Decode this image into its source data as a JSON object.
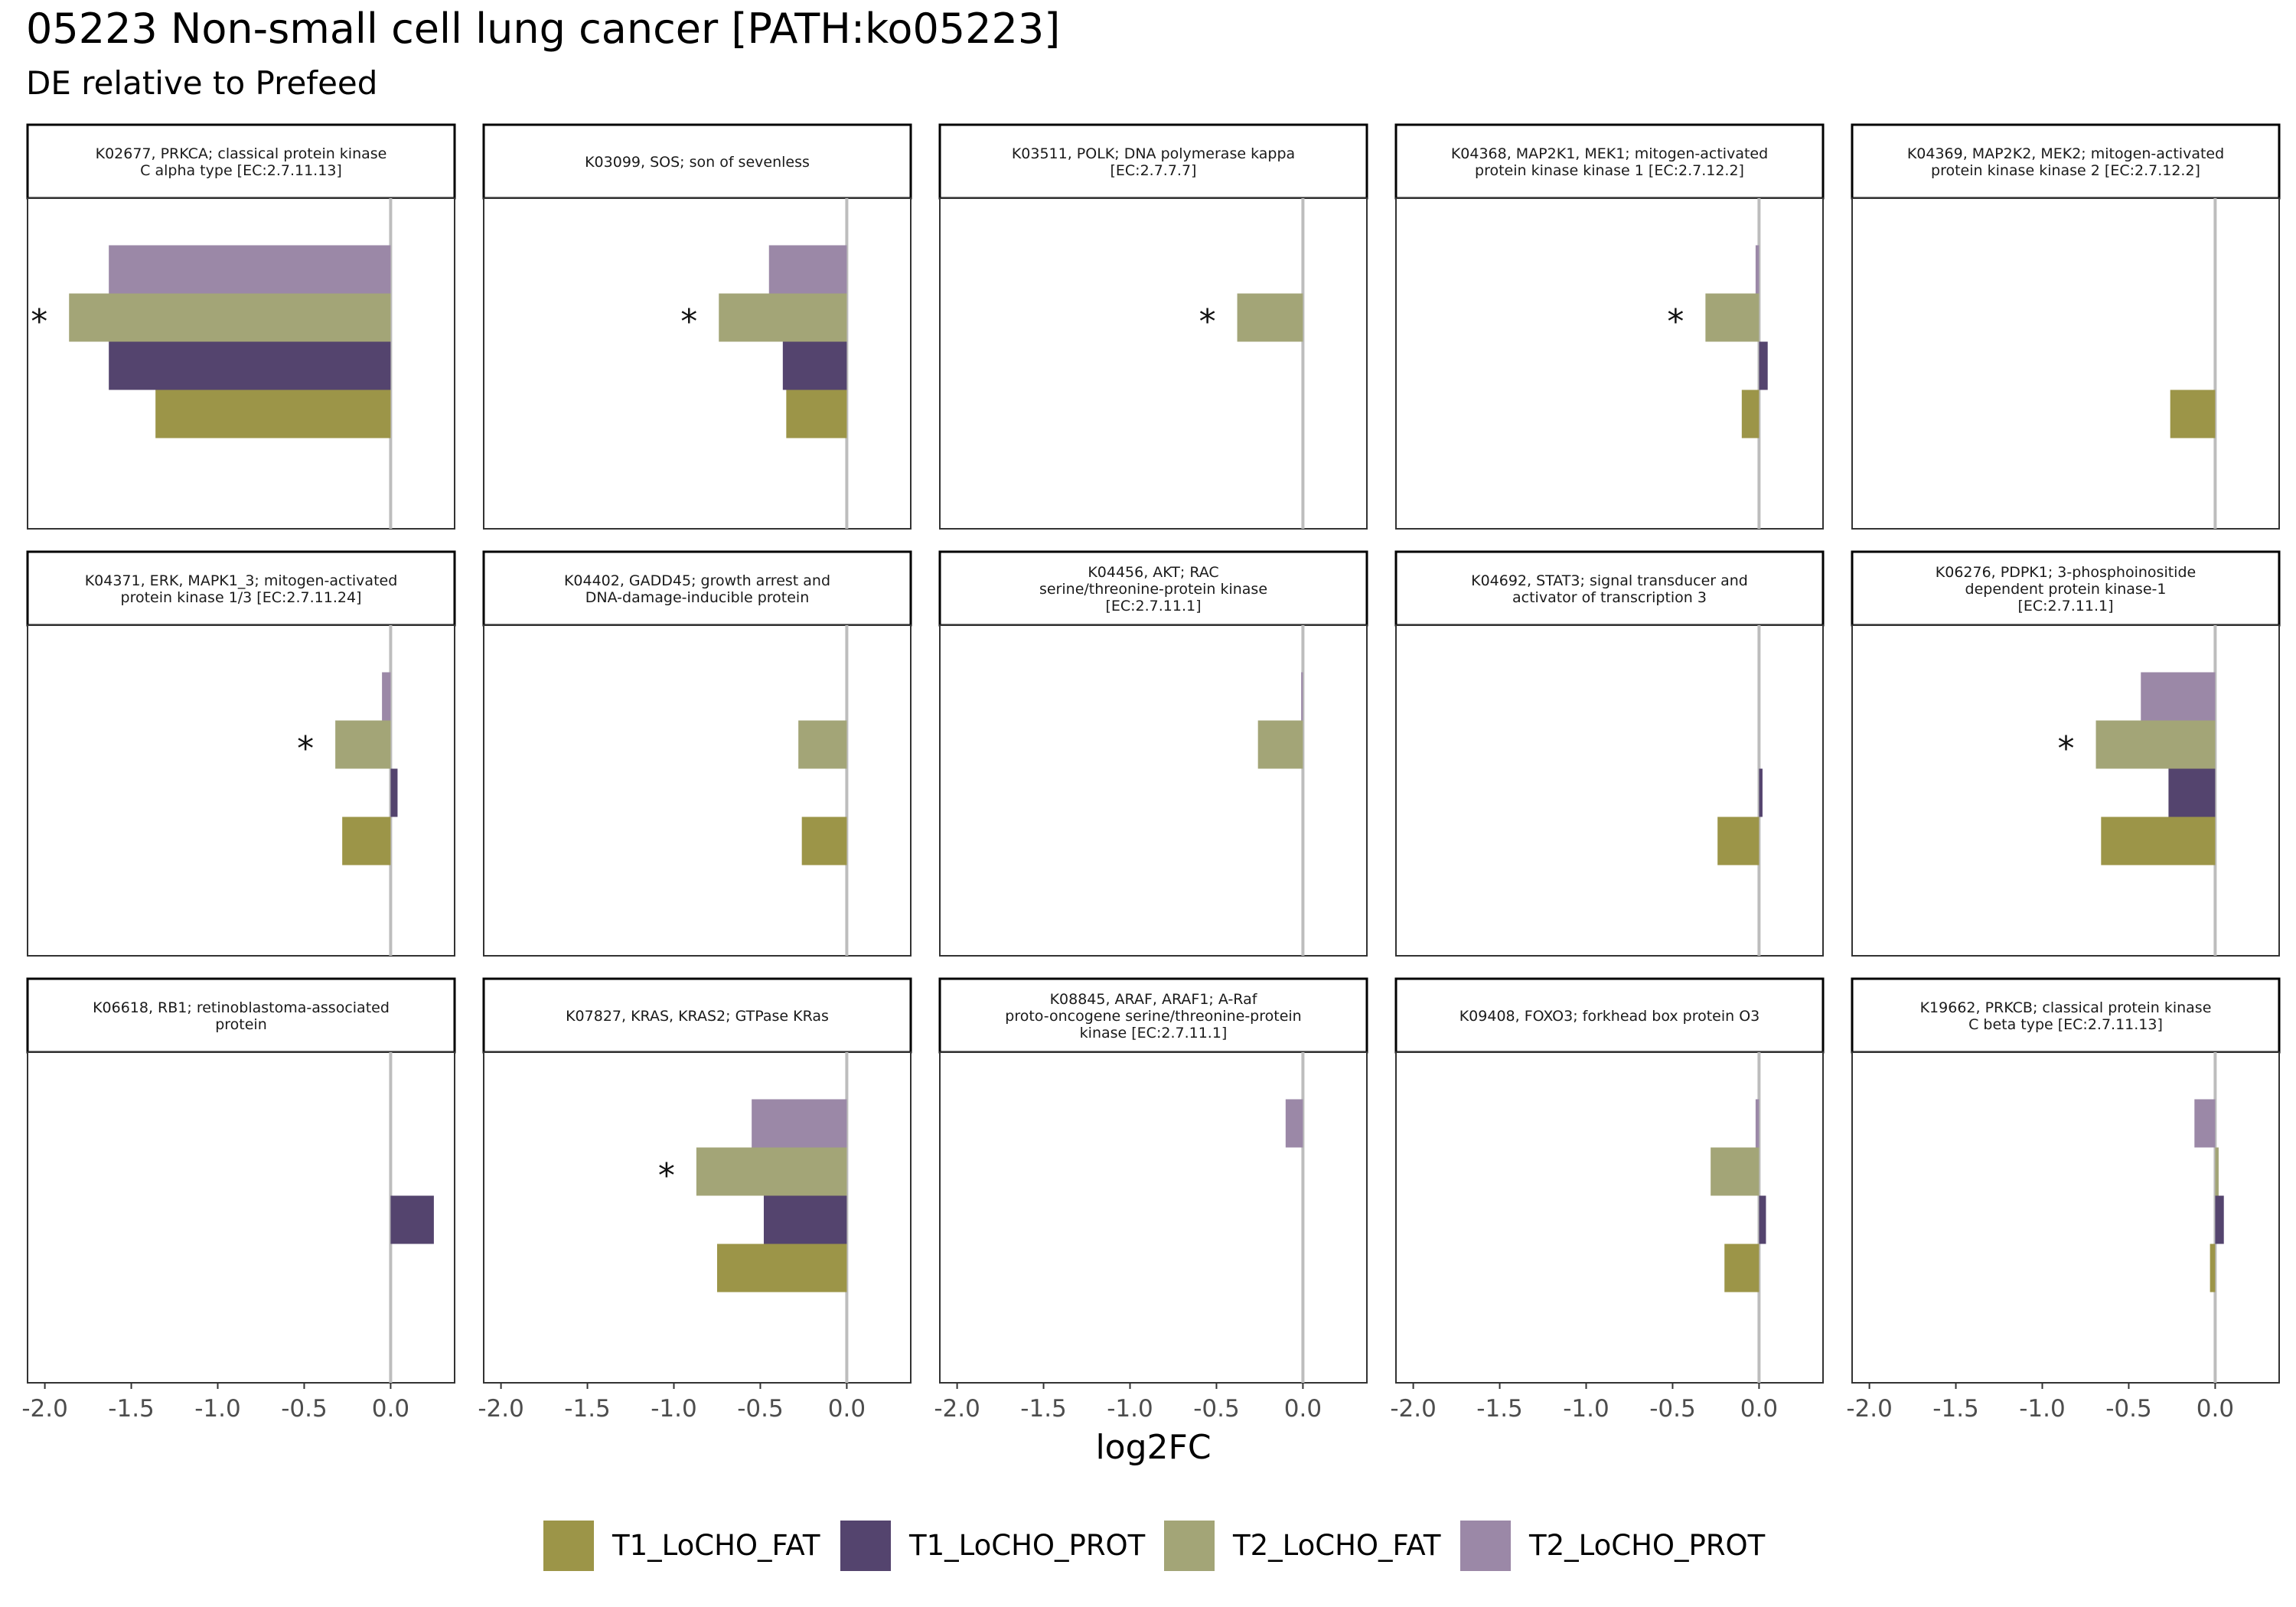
{
  "title": "05223 Non-small cell lung cancer [PATH:ko05223]",
  "subtitle": "DE relative to Prefeed",
  "xlabel": "log2FC",
  "colors": {
    "T1_LoCHO_FAT": "#9c9548",
    "T1_LoCHO_PROT": "#54446e",
    "T2_LoCHO_FAT": "#a3a577",
    "T2_LoCHO_PROT": "#9b88a7",
    "zero_line": "#bdbdbd",
    "panel_border": "#333333"
  },
  "chart_data": {
    "type": "bar",
    "orientation": "horizontal",
    "facet_layout": "3x5 grid",
    "xlim": [
      -2.1,
      0.37
    ],
    "x_ticks": [
      -2.0,
      -1.5,
      -1.0,
      -0.5,
      0.0
    ],
    "x_tick_labels": [
      "-2.0",
      "-1.5",
      "-1.0",
      "-0.5",
      "0.0"
    ],
    "xlabel": "log2FC",
    "legend_position": "bottom",
    "legend": [
      "T1_LoCHO_FAT",
      "T1_LoCHO_PROT",
      "T2_LoCHO_FAT",
      "T2_LoCHO_PROT"
    ],
    "series_order_top_to_bottom": [
      "T2_LoCHO_PROT",
      "T2_LoCHO_FAT",
      "T1_LoCHO_PROT",
      "T1_LoCHO_FAT"
    ],
    "panels": [
      {
        "label": "K02677, PRKCA; classical protein kinase\nC alpha type [EC:2.7.11.13]",
        "values": {
          "T2_LoCHO_PROT": -1.63,
          "T2_LoCHO_FAT": -1.86,
          "T1_LoCHO_PROT": -1.63,
          "T1_LoCHO_FAT": -1.36
        },
        "significance": {
          "T2_LoCHO_FAT": "*"
        }
      },
      {
        "label": "K03099, SOS; son of sevenless",
        "values": {
          "T2_LoCHO_PROT": -0.45,
          "T2_LoCHO_FAT": -0.74,
          "T1_LoCHO_PROT": -0.37,
          "T1_LoCHO_FAT": -0.35
        },
        "significance": {
          "T2_LoCHO_FAT": "*"
        }
      },
      {
        "label": "K03511, POLK; DNA polymerase kappa\n[EC:2.7.7.7]",
        "values": {
          "T2_LoCHO_FAT": -0.38
        },
        "significance": {
          "T2_LoCHO_FAT": "*"
        }
      },
      {
        "label": "K04368, MAP2K1, MEK1; mitogen-activated\nprotein kinase kinase 1 [EC:2.7.12.2]",
        "values": {
          "T2_LoCHO_PROT": -0.02,
          "T2_LoCHO_FAT": -0.31,
          "T1_LoCHO_PROT": 0.05,
          "T1_LoCHO_FAT": -0.1
        },
        "significance": {
          "T2_LoCHO_FAT": "*"
        }
      },
      {
        "label": "K04369, MAP2K2, MEK2; mitogen-activated\nprotein kinase kinase 2 [EC:2.7.12.2]",
        "values": {
          "T1_LoCHO_FAT": -0.26
        },
        "significance": {}
      },
      {
        "label": "K04371, ERK, MAPK1_3; mitogen-activated\nprotein kinase 1/3 [EC:2.7.11.24]",
        "values": {
          "T2_LoCHO_PROT": -0.05,
          "T2_LoCHO_FAT": -0.32,
          "T1_LoCHO_PROT": 0.04,
          "T1_LoCHO_FAT": -0.28
        },
        "significance": {
          "T2_LoCHO_FAT": "*"
        }
      },
      {
        "label": "K04402, GADD45; growth arrest and\nDNA-damage-inducible protein",
        "values": {
          "T2_LoCHO_FAT": -0.28,
          "T1_LoCHO_FAT": -0.26
        },
        "significance": {}
      },
      {
        "label": "K04456, AKT; RAC\nserine/threonine-protein kinase\n[EC:2.7.11.1]",
        "values": {
          "T2_LoCHO_PROT": -0.01,
          "T2_LoCHO_FAT": -0.26
        },
        "significance": {}
      },
      {
        "label": "K04692, STAT3; signal transducer and\nactivator of transcription 3",
        "values": {
          "T1_LoCHO_PROT": 0.02,
          "T1_LoCHO_FAT": -0.24
        },
        "significance": {}
      },
      {
        "label": "K06276, PDPK1; 3-phosphoinositide\ndependent protein kinase-1\n[EC:2.7.11.1]",
        "values": {
          "T2_LoCHO_PROT": -0.43,
          "T2_LoCHO_FAT": -0.69,
          "T1_LoCHO_PROT": -0.27,
          "T1_LoCHO_FAT": -0.66
        },
        "significance": {
          "T2_LoCHO_FAT": "*"
        }
      },
      {
        "label": "K06618, RB1; retinoblastoma-associated\nprotein",
        "values": {
          "T1_LoCHO_PROT": 0.25
        },
        "significance": {}
      },
      {
        "label": "K07827, KRAS, KRAS2; GTPase KRas",
        "values": {
          "T2_LoCHO_PROT": -0.55,
          "T2_LoCHO_FAT": -0.87,
          "T1_LoCHO_PROT": -0.48,
          "T1_LoCHO_FAT": -0.75
        },
        "significance": {
          "T2_LoCHO_FAT": "*"
        }
      },
      {
        "label": "K08845, ARAF, ARAF1; A-Raf\nproto-oncogene serine/threonine-protein\nkinase [EC:2.7.11.1]",
        "values": {
          "T2_LoCHO_PROT": -0.1
        },
        "significance": {}
      },
      {
        "label": "K09408, FOXO3; forkhead box protein O3",
        "values": {
          "T2_LoCHO_PROT": -0.02,
          "T2_LoCHO_FAT": -0.28,
          "T1_LoCHO_PROT": 0.04,
          "T1_LoCHO_FAT": -0.2
        },
        "significance": {}
      },
      {
        "label": "K19662, PRKCB; classical protein kinase\nC beta type [EC:2.7.11.13]",
        "values": {
          "T2_LoCHO_PROT": -0.12,
          "T2_LoCHO_FAT": 0.02,
          "T1_LoCHO_PROT": 0.05,
          "T1_LoCHO_FAT": -0.03
        },
        "significance": {}
      }
    ]
  }
}
